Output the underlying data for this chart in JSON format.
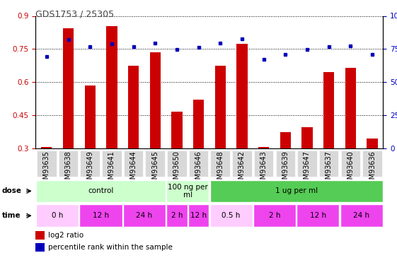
{
  "title": "GDS1753 / 25305",
  "samples": [
    "GSM93635",
    "GSM93638",
    "GSM93649",
    "GSM93641",
    "GSM93644",
    "GSM93645",
    "GSM93650",
    "GSM93646",
    "GSM93648",
    "GSM93642",
    "GSM93643",
    "GSM93639",
    "GSM93647",
    "GSM93637",
    "GSM93640",
    "GSM93636"
  ],
  "log2_ratio": [
    0.305,
    0.845,
    0.585,
    0.855,
    0.675,
    0.735,
    0.465,
    0.52,
    0.675,
    0.775,
    0.308,
    0.375,
    0.395,
    0.645,
    0.665,
    0.345
  ],
  "pct_rank_pct": [
    69.5,
    82.0,
    77.0,
    79.0,
    77.0,
    79.5,
    74.5,
    76.5,
    79.5,
    82.5,
    67.0,
    71.0,
    74.5,
    77.0,
    77.5,
    71.0
  ],
  "ylim_left": [
    0.3,
    0.9
  ],
  "yticks_left": [
    0.3,
    0.45,
    0.6,
    0.75,
    0.9
  ],
  "ytick_labels_left": [
    "0.3",
    "0.45",
    "0.6",
    "0.75",
    "0.9"
  ],
  "ylim_right": [
    0,
    100
  ],
  "yticks_right": [
    0,
    25,
    50,
    75,
    100
  ],
  "ytick_labels_right": [
    "0",
    "25",
    "50",
    "75",
    "100%"
  ],
  "bar_color": "#cc0000",
  "dot_color": "#0000bb",
  "bar_bottom": 0.3,
  "dose_groups": [
    {
      "label": "control",
      "start": 0,
      "end": 6,
      "color": "#ccffcc"
    },
    {
      "label": "100 ng per\nml",
      "start": 6,
      "end": 8,
      "color": "#ccffcc"
    },
    {
      "label": "1 ug per ml",
      "start": 8,
      "end": 16,
      "color": "#55cc55"
    }
  ],
  "time_groups": [
    {
      "label": "0 h",
      "start": 0,
      "end": 2,
      "color": "#ffccff"
    },
    {
      "label": "12 h",
      "start": 2,
      "end": 4,
      "color": "#ee44ee"
    },
    {
      "label": "24 h",
      "start": 4,
      "end": 6,
      "color": "#ee44ee"
    },
    {
      "label": "2 h",
      "start": 6,
      "end": 7,
      "color": "#ee44ee"
    },
    {
      "label": "12 h",
      "start": 7,
      "end": 8,
      "color": "#ee44ee"
    },
    {
      "label": "0.5 h",
      "start": 8,
      "end": 10,
      "color": "#ffccff"
    },
    {
      "label": "2 h",
      "start": 10,
      "end": 12,
      "color": "#ee44ee"
    },
    {
      "label": "12 h",
      "start": 12,
      "end": 14,
      "color": "#ee44ee"
    },
    {
      "label": "24 h",
      "start": 14,
      "end": 16,
      "color": "#ee44ee"
    }
  ],
  "legend_red_label": "log2 ratio",
  "legend_blue_label": "percentile rank within the sample",
  "row_label_dose": "dose",
  "row_label_time": "time",
  "bg_color": "#ffffff",
  "plot_bg_color": "#ffffff",
  "grid_color": "#000000",
  "xlabel_bg": "#d8d8d8",
  "fontsize_axis": 7,
  "fontsize_title": 9,
  "fontsize_tick": 7.5,
  "fontsize_row": 7.5,
  "fontsize_legend": 7.5
}
